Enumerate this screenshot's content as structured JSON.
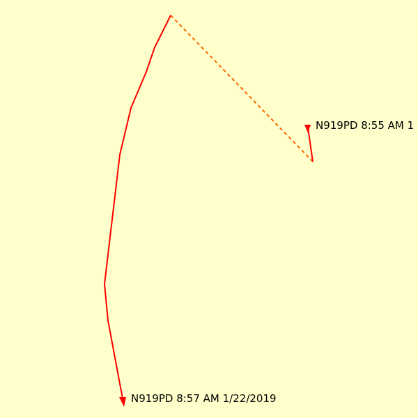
{
  "map": {
    "background_color": "#ffffcc"
  },
  "tracks": [
    {
      "id": "track-1",
      "style": "solid",
      "color": "#ff0000",
      "label": "N919PD 8:55 AM 1"
    },
    {
      "id": "track-2",
      "style": "solid",
      "color": "#ff0000",
      "label": "N919PD 8:57 AM 1/22/2019"
    },
    {
      "id": "gap-connector",
      "style": "dashed",
      "color": "#ff6600"
    }
  ],
  "icons": {
    "track_end_marker": "arrowhead-icon"
  }
}
